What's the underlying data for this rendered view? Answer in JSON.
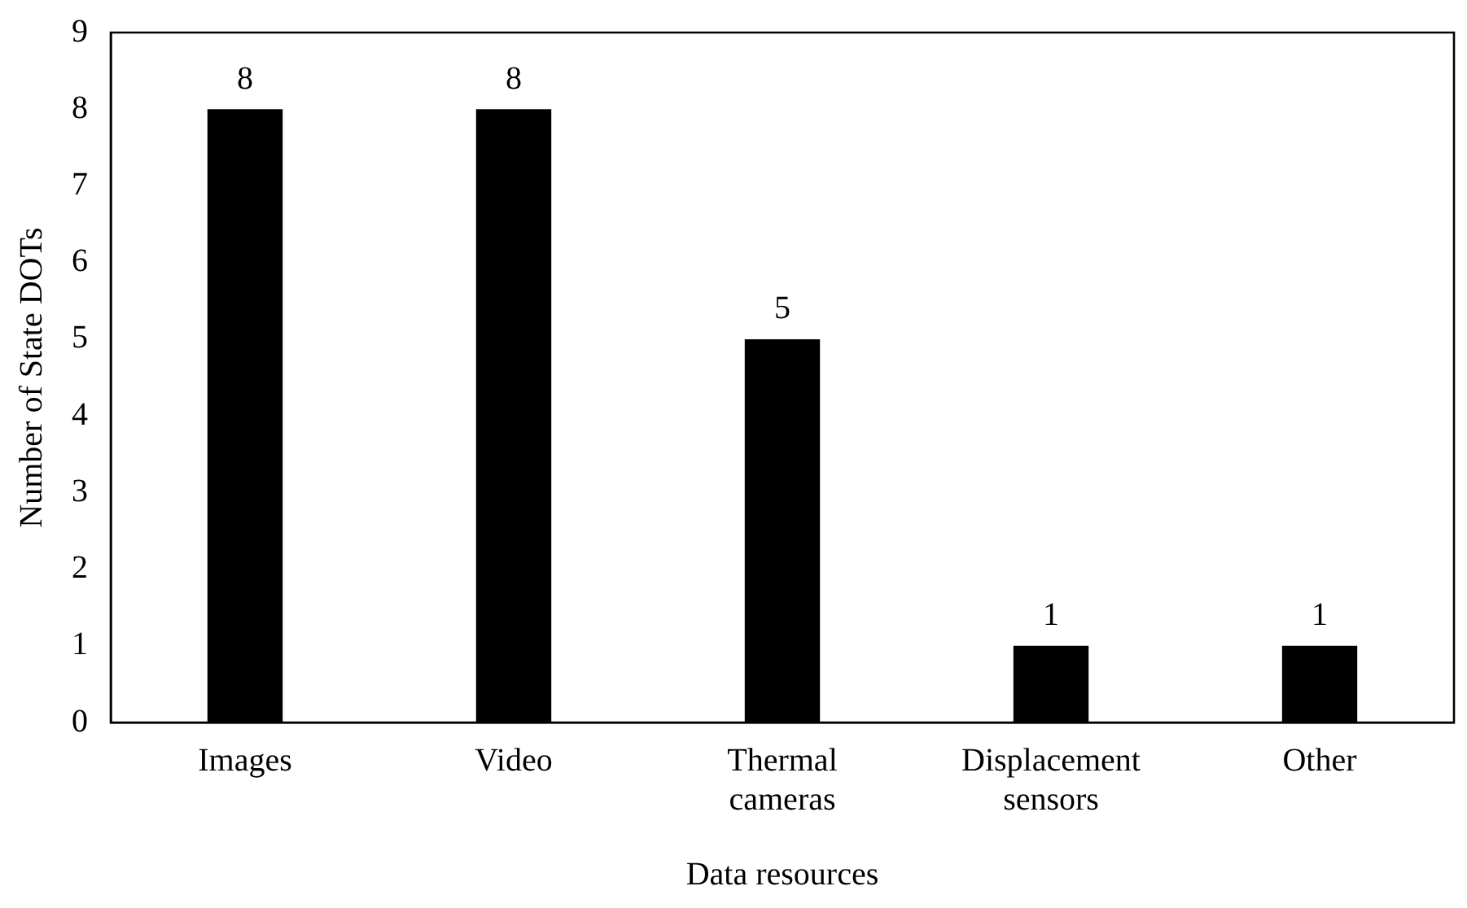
{
  "chart_data": {
    "type": "bar",
    "xlabel": "Data resources",
    "ylabel": "Number of State DOTs",
    "categories": [
      "Images",
      "Video",
      "Thermal cameras",
      "Displacement sensors",
      "Other"
    ],
    "values": [
      8,
      8,
      5,
      1,
      1
    ],
    "color": "#000000",
    "ylim": [
      0,
      9
    ],
    "yticks": [
      0,
      1,
      2,
      3,
      4,
      5,
      6,
      7,
      8,
      9
    ],
    "grid": false,
    "legend": false,
    "data_labels": true
  }
}
